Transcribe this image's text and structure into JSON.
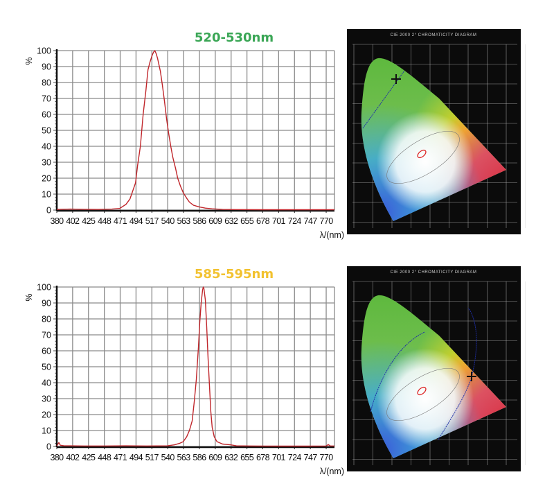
{
  "chart_data": [
    {
      "type": "line",
      "title": "520-530nm",
      "title_color": "#3aa655",
      "xlabel": "λ/(nm)",
      "ylabel": "%",
      "xlim": [
        380,
        782
      ],
      "ylim": [
        0,
        100
      ],
      "x_tick_labels": [
        "380",
        "402",
        "425",
        "448",
        "471",
        "494",
        "517",
        "540",
        "563",
        "586",
        "609",
        "632",
        "655",
        "678",
        "701",
        "724",
        "747",
        "770"
      ],
      "y_tick_labels": [
        "0",
        "10",
        "20",
        "30",
        "40",
        "50",
        "60",
        "70",
        "80",
        "90",
        "100"
      ],
      "grid": true,
      "line_color": "#c0262b",
      "series": [
        {
          "x": [
            380,
            400,
            420,
            440,
            460,
            471,
            480,
            486,
            490,
            494,
            497,
            501,
            505,
            509,
            512,
            515,
            518,
            520,
            522,
            524,
            526,
            528,
            530,
            533,
            536,
            539,
            542,
            545,
            548,
            552,
            555,
            559,
            563,
            568,
            572,
            578,
            586,
            595,
            605,
            620,
            640,
            680,
            720,
            760,
            782
          ],
          "y": [
            0.4,
            0.6,
            0.5,
            0.4,
            0.6,
            1,
            3.5,
            7,
            12,
            17,
            28,
            40,
            60,
            75,
            88,
            93,
            97,
            99,
            100,
            98,
            95,
            91,
            87,
            78,
            68,
            57,
            48,
            40,
            33,
            26,
            20,
            15,
            11,
            7.5,
            5,
            3,
            2,
            1.2,
            0.8,
            0.4,
            0.3,
            0.2,
            0.2,
            0.2,
            0.2
          ]
        }
      ],
      "diagram": {
        "title": "CIE 2000 2° CHROMATICITY DIAGRAM",
        "marker": "cross",
        "marker_region": "green"
      }
    },
    {
      "type": "line",
      "title": "585-595nm",
      "title_color": "#f2c230",
      "xlabel": "λ/(nm)",
      "ylabel": "%",
      "xlim": [
        380,
        782
      ],
      "ylim": [
        0,
        100
      ],
      "x_tick_labels": [
        "380",
        "402",
        "425",
        "448",
        "471",
        "494",
        "517",
        "540",
        "563",
        "586",
        "609",
        "632",
        "655",
        "678",
        "701",
        "724",
        "747",
        "770"
      ],
      "y_tick_labels": [
        "0",
        "10",
        "20",
        "30",
        "40",
        "50",
        "60",
        "70",
        "80",
        "90",
        "100"
      ],
      "grid": true,
      "line_color": "#c0262b",
      "series": [
        {
          "x": [
            380,
            383,
            385,
            390,
            400,
            420,
            450,
            480,
            510,
            540,
            550,
            558,
            563,
            568,
            572,
            576,
            579,
            582,
            585,
            587,
            589,
            591,
            592,
            593,
            595,
            597,
            599,
            601,
            603,
            605,
            608,
            612,
            620,
            632,
            640,
            660,
            700,
            740,
            770,
            773,
            776,
            782
          ],
          "y": [
            0.3,
            2.5,
            0.8,
            0.5,
            0.4,
            0.3,
            0.3,
            0.4,
            0.3,
            0.4,
            1,
            2,
            3,
            6,
            10,
            16,
            28,
            42,
            62,
            78,
            90,
            98,
            100,
            99,
            92,
            75,
            55,
            38,
            22,
            12,
            6,
            3,
            1.5,
            1,
            0.4,
            0.3,
            0.2,
            0.2,
            0.3,
            1.2,
            0.3,
            0.3
          ]
        }
      ],
      "diagram": {
        "title": "CIE 2000 2° CHROMATICITY DIAGRAM",
        "marker": "cross",
        "marker_region": "yellow-orange"
      }
    }
  ]
}
